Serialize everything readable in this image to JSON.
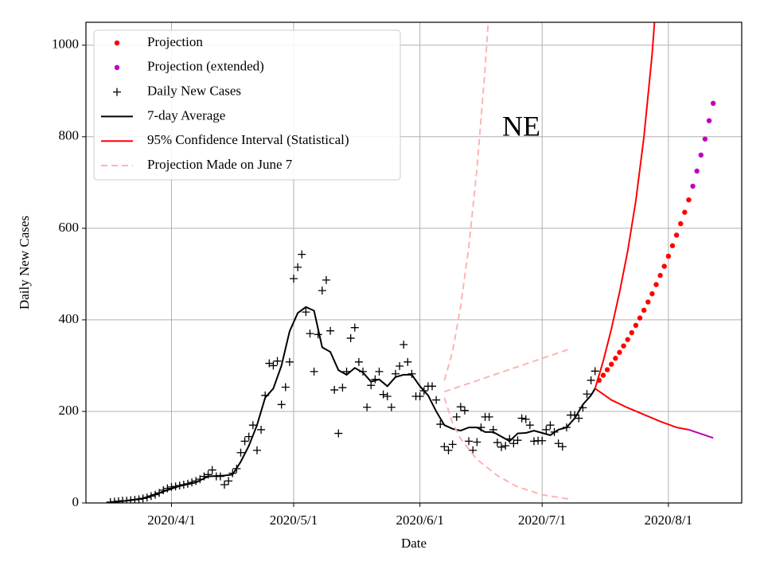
{
  "chart_data": {
    "type": "line",
    "title": "NE",
    "xlabel": "Date",
    "ylabel": "Daily New Cases",
    "xlim": [
      "2020/3/11",
      "2020/8/19"
    ],
    "xticks": [
      "2020/4/1",
      "2020/5/1",
      "2020/6/1",
      "2020/7/1",
      "2020/8/1"
    ],
    "ylim": [
      0,
      1050
    ],
    "yticks": [
      0,
      200,
      400,
      600,
      800,
      1000
    ],
    "grid": true,
    "legend": "upper left",
    "series": [
      {
        "name": "Projection",
        "color": "#ff0000",
        "style": "dots",
        "x": [
          "2020/7/15",
          "2020/7/16",
          "2020/7/17",
          "2020/7/18",
          "2020/7/19",
          "2020/7/20",
          "2020/7/21",
          "2020/7/22",
          "2020/7/23",
          "2020/7/24",
          "2020/7/25",
          "2020/7/26",
          "2020/7/27",
          "2020/7/28",
          "2020/7/29",
          "2020/7/30",
          "2020/7/31",
          "2020/8/1",
          "2020/8/2",
          "2020/8/3",
          "2020/8/4",
          "2020/8/5",
          "2020/8/6"
        ],
        "values": [
          268,
          279,
          291,
          303,
          316,
          329,
          343,
          357,
          372,
          388,
          404,
          421,
          439,
          457,
          477,
          497,
          517,
          539,
          562,
          585,
          610,
          635,
          662
        ]
      },
      {
        "name": "Projection (extended)",
        "color": "#bf00bf",
        "style": "dots",
        "x": [
          "2020/8/7",
          "2020/8/8",
          "2020/8/9",
          "2020/8/10",
          "2020/8/11",
          "2020/8/12"
        ],
        "values": [
          692,
          725,
          760,
          795,
          835,
          873
        ]
      },
      {
        "name": "Daily New Cases",
        "color": "#000000",
        "style": "plus",
        "x": [
          "2020/3/17",
          "2020/3/18",
          "2020/3/19",
          "2020/3/20",
          "2020/3/21",
          "2020/3/22",
          "2020/3/23",
          "2020/3/24",
          "2020/3/25",
          "2020/3/26",
          "2020/3/27",
          "2020/3/28",
          "2020/3/29",
          "2020/3/30",
          "2020/3/31",
          "2020/4/1",
          "2020/4/2",
          "2020/4/3",
          "2020/4/4",
          "2020/4/5",
          "2020/4/6",
          "2020/4/7",
          "2020/4/8",
          "2020/4/9",
          "2020/4/10",
          "2020/4/11",
          "2020/4/12",
          "2020/4/13",
          "2020/4/14",
          "2020/4/15",
          "2020/4/16",
          "2020/4/17",
          "2020/4/18",
          "2020/4/19",
          "2020/4/20",
          "2020/4/21",
          "2020/4/22",
          "2020/4/23",
          "2020/4/24",
          "2020/4/25",
          "2020/4/26",
          "2020/4/27",
          "2020/4/28",
          "2020/4/29",
          "2020/4/30",
          "2020/5/1",
          "2020/5/2",
          "2020/5/3",
          "2020/5/4",
          "2020/5/5",
          "2020/5/6",
          "2020/5/7",
          "2020/5/8",
          "2020/5/9",
          "2020/5/10",
          "2020/5/11",
          "2020/5/12",
          "2020/5/13",
          "2020/5/14",
          "2020/5/15",
          "2020/5/16",
          "2020/5/17",
          "2020/5/18",
          "2020/5/19",
          "2020/5/20",
          "2020/5/21",
          "2020/5/22",
          "2020/5/23",
          "2020/5/24",
          "2020/5/25",
          "2020/5/26",
          "2020/5/27",
          "2020/5/28",
          "2020/5/29",
          "2020/5/30",
          "2020/5/31",
          "2020/6/1",
          "2020/6/2",
          "2020/6/3",
          "2020/6/4",
          "2020/6/5",
          "2020/6/6",
          "2020/6/7",
          "2020/6/8",
          "2020/6/9",
          "2020/6/10",
          "2020/6/11",
          "2020/6/12",
          "2020/6/13",
          "2020/6/14",
          "2020/6/15",
          "2020/6/16",
          "2020/6/17",
          "2020/6/18",
          "2020/6/19",
          "2020/6/20",
          "2020/6/21",
          "2020/6/22",
          "2020/6/23",
          "2020/6/24",
          "2020/6/25",
          "2020/6/26",
          "2020/6/27",
          "2020/6/28",
          "2020/6/29",
          "2020/6/30",
          "2020/7/1",
          "2020/7/2",
          "2020/7/3",
          "2020/7/4",
          "2020/7/5",
          "2020/7/6",
          "2020/7/7",
          "2020/7/8",
          "2020/7/9",
          "2020/7/10",
          "2020/7/11",
          "2020/7/12",
          "2020/7/13",
          "2020/7/14"
        ],
        "values": [
          2,
          3,
          4,
          5,
          5,
          6,
          7,
          8,
          10,
          12,
          15,
          18,
          22,
          28,
          32,
          35,
          36,
          38,
          40,
          42,
          45,
          48,
          52,
          58,
          62,
          72,
          58,
          58,
          40,
          48,
          65,
          75,
          110,
          135,
          145,
          170,
          115,
          160,
          235,
          305,
          300,
          310,
          215,
          253,
          308,
          490,
          515,
          543,
          417,
          370,
          287,
          368,
          464,
          487,
          376,
          247,
          152,
          252,
          287,
          360,
          383,
          308,
          287,
          209,
          257,
          270,
          287,
          237,
          233,
          209,
          282,
          299,
          346,
          308,
          282,
          233,
          233,
          245,
          255,
          255,
          225,
          172,
          123,
          115,
          128,
          188,
          210,
          202,
          135,
          115,
          133,
          165,
          188,
          188,
          160,
          132,
          122,
          125,
          140,
          130,
          137,
          185,
          183,
          170,
          135,
          136,
          136,
          160,
          170,
          155,
          130,
          123,
          165,
          192,
          192,
          185,
          208,
          238,
          268,
          288
        ]
      },
      {
        "name": "7-day Average",
        "color": "#000000",
        "style": "line",
        "x": [
          "2020/3/17",
          "2020/3/20",
          "2020/3/25",
          "2020/3/30",
          "2020/4/3",
          "2020/4/7",
          "2020/4/10",
          "2020/4/14",
          "2020/4/16",
          "2020/4/18",
          "2020/4/20",
          "2020/4/22",
          "2020/4/24",
          "2020/4/26",
          "2020/4/28",
          "2020/4/30",
          "2020/5/2",
          "2020/5/4",
          "2020/5/6",
          "2020/5/8",
          "2020/5/10",
          "2020/5/12",
          "2020/5/14",
          "2020/5/16",
          "2020/5/18",
          "2020/5/20",
          "2020/5/22",
          "2020/5/24",
          "2020/5/26",
          "2020/5/28",
          "2020/5/30",
          "2020/6/1",
          "2020/6/3",
          "2020/6/5",
          "2020/6/7",
          "2020/6/9",
          "2020/6/11",
          "2020/6/13",
          "2020/6/15",
          "2020/6/17",
          "2020/6/19",
          "2020/6/21",
          "2020/6/23",
          "2020/6/25",
          "2020/6/27",
          "2020/6/29",
          "2020/7/1",
          "2020/7/3",
          "2020/7/5",
          "2020/7/7",
          "2020/7/9",
          "2020/7/11",
          "2020/7/13",
          "2020/7/14"
        ],
        "values": [
          0,
          4,
          10,
          25,
          37,
          45,
          58,
          60,
          62,
          90,
          125,
          170,
          230,
          250,
          300,
          375,
          415,
          428,
          420,
          340,
          330,
          290,
          280,
          295,
          285,
          265,
          270,
          255,
          275,
          280,
          280,
          255,
          235,
          200,
          170,
          162,
          158,
          165,
          165,
          155,
          155,
          145,
          135,
          152,
          153,
          158,
          153,
          148,
          160,
          165,
          185,
          215,
          235,
          250
        ]
      },
      {
        "name": "95% Confidence Interval (Statistical)",
        "color": "#ff0000",
        "style": "line",
        "x": [
          "2020/7/14",
          "2020/7/16",
          "2020/7/18",
          "2020/7/20",
          "2020/7/22",
          "2020/7/24",
          "2020/7/26",
          "2020/7/28",
          "2020/7/29"
        ],
        "values": [
          250,
          310,
          380,
          460,
          550,
          660,
          800,
          980,
          1100
        ]
      },
      {
        "name": "Projection Made on June 7",
        "color": "#ffb3b3",
        "style": "dashed",
        "x": [
          "2020/6/7",
          "2020/6/9",
          "2020/6/11",
          "2020/6/13",
          "2020/6/15",
          "2020/6/17",
          "2020/6/18"
        ],
        "values": [
          268,
          330,
          430,
          560,
          730,
          950,
          1080
        ]
      },
      {
        "color": "#ff0000",
        "style": "line",
        "x": [
          "2020/7/14",
          "2020/7/18",
          "2020/7/22",
          "2020/7/26",
          "2020/7/30",
          "2020/8/3",
          "2020/8/6"
        ],
        "values": [
          250,
          225,
          208,
          193,
          178,
          165,
          160
        ]
      },
      {
        "color": "#bf00bf",
        "style": "line",
        "x": [
          "2020/8/6",
          "2020/8/12"
        ],
        "values": [
          160,
          142
        ]
      },
      {
        "color": "#ffb3b3",
        "style": "dashed",
        "x": [
          "2020/6/7",
          "2020/7/8"
        ],
        "values": [
          243,
          337
        ]
      },
      {
        "color": "#ffb3b3",
        "style": "dashed",
        "x": [
          "2020/6/7",
          "2020/6/9",
          "2020/6/11",
          "2020/6/15",
          "2020/6/20",
          "2020/6/25",
          "2020/7/1",
          "2020/7/8"
        ],
        "values": [
          230,
          175,
          140,
          95,
          60,
          35,
          18,
          8
        ]
      }
    ]
  }
}
